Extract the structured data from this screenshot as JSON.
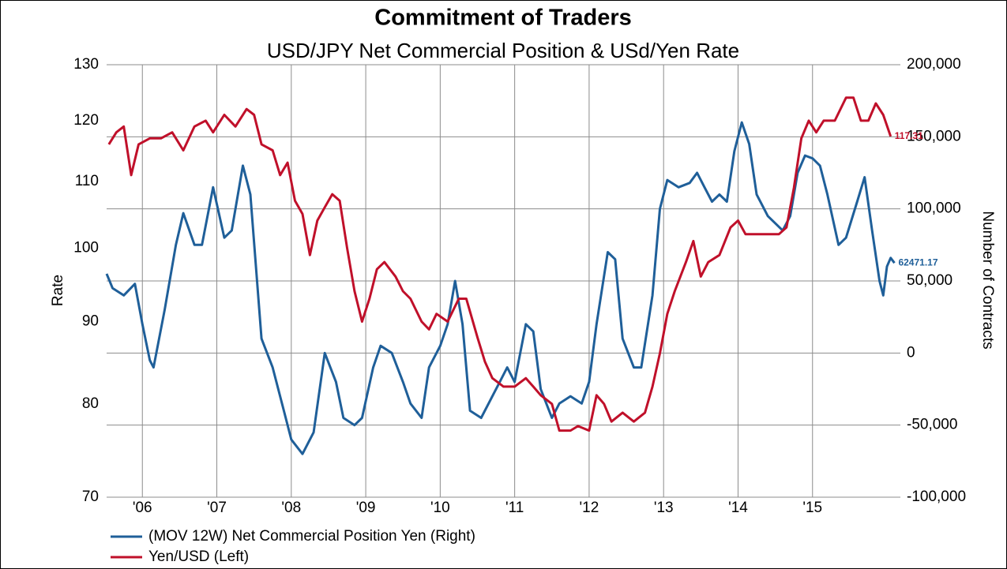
{
  "chart_data": {
    "type": "line",
    "title": "Commitment of Traders",
    "subtitle": "USD/JPY Net Commercial Position & USd/Yen Rate",
    "y_label": "Rate",
    "y2_label": "Number of Contracts",
    "ylim": [
      70,
      130
    ],
    "ylog": true,
    "yticks": [
      70,
      80,
      90,
      100,
      110,
      120,
      130
    ],
    "y2lim": [
      -100000,
      200000
    ],
    "y2ticks": [
      {
        "value": -100000,
        "label": "-100,000"
      },
      {
        "value": -50000,
        "label": "-50,000"
      },
      0,
      {
        "value": 50000,
        "label": "50,000"
      },
      {
        "value": 100000,
        "label": "100,000"
      },
      {
        "value": 150000,
        "label": "150,000"
      },
      {
        "value": 200000,
        "label": "200,000"
      }
    ],
    "xlim": [
      2005.52,
      2016.18
    ],
    "xticks": [
      {
        "value": 2006,
        "label": "'06"
      },
      {
        "value": 2007,
        "label": "'07"
      },
      {
        "value": 2008,
        "label": "'08"
      },
      {
        "value": 2009,
        "label": "'09"
      },
      {
        "value": 2010,
        "label": "'10"
      },
      {
        "value": 2011,
        "label": "'11"
      },
      {
        "value": 2012,
        "label": "'12"
      },
      {
        "value": 2013,
        "label": "'13"
      },
      {
        "value": 2014,
        "label": "'14"
      },
      {
        "value": 2015,
        "label": "'15"
      }
    ],
    "grid": true,
    "legend": "bottom-left",
    "series": [
      {
        "name": "(MOV 12W) Net Commercial Position Yen (Right)",
        "color": "#1f5f99",
        "axis": "y2",
        "x": [
          2005.52,
          2005.6,
          2005.75,
          2005.9,
          2006.0,
          2006.1,
          2006.15,
          2006.3,
          2006.45,
          2006.55,
          2006.7,
          2006.8,
          2006.95,
          2007.1,
          2007.2,
          2007.35,
          2007.45,
          2007.6,
          2007.75,
          2007.9,
          2008.0,
          2008.15,
          2008.3,
          2008.45,
          2008.6,
          2008.7,
          2008.85,
          2008.95,
          2009.1,
          2009.2,
          2009.35,
          2009.5,
          2009.6,
          2009.75,
          2009.85,
          2010.0,
          2010.1,
          2010.2,
          2010.3,
          2010.4,
          2010.55,
          2010.7,
          2010.8,
          2010.9,
          2011.0,
          2011.15,
          2011.25,
          2011.35,
          2011.5,
          2011.6,
          2011.75,
          2011.9,
          2012.0,
          2012.1,
          2012.25,
          2012.35,
          2012.45,
          2012.6,
          2012.7,
          2012.85,
          2012.95,
          2013.05,
          2013.2,
          2013.35,
          2013.45,
          2013.55,
          2013.65,
          2013.75,
          2013.85,
          2013.95,
          2014.05,
          2014.15,
          2014.25,
          2014.4,
          2014.5,
          2014.6,
          2014.7,
          2014.8,
          2014.9,
          2015.0,
          2015.1,
          2015.2,
          2015.35,
          2015.45,
          2015.6,
          2015.7,
          2015.8,
          2015.9,
          2015.95,
          2016.0,
          2016.05,
          2016.1
        ],
        "values": [
          55000,
          45000,
          40000,
          48000,
          20000,
          -5000,
          -10000,
          30000,
          75000,
          97000,
          75000,
          75000,
          115000,
          80000,
          85000,
          130000,
          110000,
          10000,
          -10000,
          -40000,
          -60000,
          -70000,
          -55000,
          0,
          -20000,
          -45000,
          -50000,
          -45000,
          -10000,
          5000,
          0,
          -20000,
          -35000,
          -45000,
          -10000,
          5000,
          20000,
          50000,
          20000,
          -40000,
          -45000,
          -30000,
          -20000,
          -10000,
          -20000,
          20000,
          15000,
          -25000,
          -45000,
          -35000,
          -30000,
          -35000,
          -20000,
          20000,
          70000,
          65000,
          10000,
          -10000,
          -10000,
          40000,
          100000,
          120000,
          115000,
          118000,
          125000,
          115000,
          105000,
          110000,
          105000,
          140000,
          160000,
          145000,
          110000,
          95000,
          90000,
          85000,
          95000,
          125000,
          137000,
          135000,
          130000,
          110000,
          75000,
          80000,
          105000,
          122000,
          85000,
          50000,
          40000,
          60000,
          66000,
          62471.17
        ]
      },
      {
        "name": "Yen/USD (Left)",
        "color": "#c0102a",
        "x": [
          2005.55,
          2005.65,
          2005.75,
          2005.85,
          2005.95,
          2006.1,
          2006.25,
          2006.4,
          2006.55,
          2006.7,
          2006.85,
          2006.95,
          2007.1,
          2007.25,
          2007.4,
          2007.5,
          2007.6,
          2007.75,
          2007.85,
          2007.95,
          2008.05,
          2008.15,
          2008.25,
          2008.35,
          2008.45,
          2008.55,
          2008.65,
          2008.75,
          2008.85,
          2008.95,
          2009.05,
          2009.15,
          2009.25,
          2009.4,
          2009.5,
          2009.6,
          2009.75,
          2009.85,
          2009.95,
          2010.1,
          2010.25,
          2010.35,
          2010.5,
          2010.6,
          2010.7,
          2010.85,
          2011.0,
          2011.15,
          2011.25,
          2011.35,
          2011.5,
          2011.6,
          2011.75,
          2011.85,
          2012.0,
          2012.1,
          2012.2,
          2012.3,
          2012.45,
          2012.6,
          2012.75,
          2012.85,
          2012.95,
          2013.05,
          2013.15,
          2013.3,
          2013.4,
          2013.5,
          2013.6,
          2013.75,
          2013.9,
          2014.0,
          2014.1,
          2014.25,
          2014.4,
          2014.55,
          2014.65,
          2014.75,
          2014.85,
          2014.95,
          2015.05,
          2015.15,
          2015.3,
          2015.45,
          2015.55,
          2015.65,
          2015.75,
          2015.85,
          2015.95,
          2016.05
        ],
        "values": [
          116,
          118,
          119,
          111,
          116,
          117,
          117,
          118,
          115,
          119,
          120,
          118,
          121,
          119,
          122,
          121,
          116,
          115,
          111,
          113,
          107,
          105,
          99,
          104,
          106,
          108,
          107,
          100,
          94,
          90,
          93,
          97,
          98,
          96,
          94,
          93,
          90,
          89,
          91,
          90,
          93,
          93,
          88,
          85,
          83,
          82,
          82,
          83,
          82,
          81,
          80,
          77,
          77,
          77.5,
          77,
          81,
          80,
          78,
          79,
          78,
          79,
          82,
          86,
          91,
          94,
          98,
          101,
          96,
          98,
          99,
          103,
          104,
          102,
          102,
          102,
          102,
          103,
          109,
          117,
          120,
          118,
          120,
          120,
          124,
          124,
          120,
          120,
          123,
          121,
          117.31
        ]
      }
    ]
  }
}
